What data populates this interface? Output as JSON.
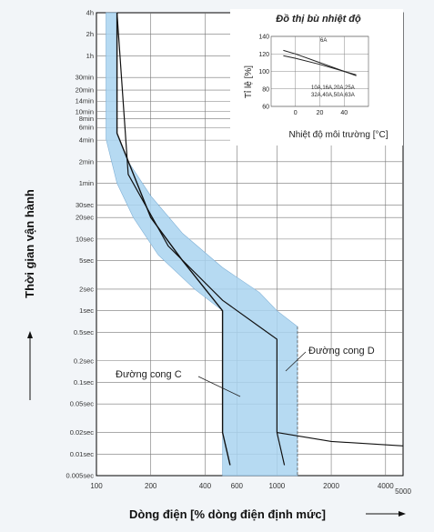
{
  "chart_data": [
    {
      "type": "line",
      "title": "",
      "xlabel": "Dòng điện [% dòng điện định mức]",
      "ylabel": "Thời gian vận hành",
      "x_scale": "log",
      "y_scale": "log",
      "xlim": [
        100,
        5000
      ],
      "ylim_seconds": [
        0.005,
        14400
      ],
      "x_ticks": [
        {
          "value": 100,
          "label": "100"
        },
        {
          "value": 200,
          "label": "200"
        },
        {
          "value": 400,
          "label": "400"
        },
        {
          "value": 600,
          "label": "600"
        },
        {
          "value": 1000,
          "label": "1000"
        },
        {
          "value": 2000,
          "label": "2000"
        },
        {
          "value": 4000,
          "label": "4000"
        },
        {
          "value": 5000,
          "label": "5000"
        }
      ],
      "y_ticks": [
        {
          "value": 14400,
          "label": "4h"
        },
        {
          "value": 7200,
          "label": "2h"
        },
        {
          "value": 3600,
          "label": "1h"
        },
        {
          "value": 1800,
          "label": "30min"
        },
        {
          "value": 1200,
          "label": "20min"
        },
        {
          "value": 840,
          "label": "14min"
        },
        {
          "value": 600,
          "label": "10min"
        },
        {
          "value": 480,
          "label": "8min"
        },
        {
          "value": 360,
          "label": "6min"
        },
        {
          "value": 240,
          "label": "4min"
        },
        {
          "value": 120,
          "label": "2min"
        },
        {
          "value": 60,
          "label": "1min"
        },
        {
          "value": 30,
          "label": "30sec"
        },
        {
          "value": 20,
          "label": "20sec"
        },
        {
          "value": 10,
          "label": "10sec"
        },
        {
          "value": 5,
          "label": "5sec"
        },
        {
          "value": 2,
          "label": "2sec"
        },
        {
          "value": 1,
          "label": "1sec"
        },
        {
          "value": 0.5,
          "label": "0.5sec"
        },
        {
          "value": 0.2,
          "label": "0.2sec"
        },
        {
          "value": 0.1,
          "label": "0.1sec"
        },
        {
          "value": 0.05,
          "label": "0.05sec"
        },
        {
          "value": 0.02,
          "label": "0.02sec"
        },
        {
          "value": 0.01,
          "label": "0.01sec"
        },
        {
          "value": 0.005,
          "label": "0.005sec"
        }
      ],
      "grid": true,
      "band": {
        "upper": [
          [
            130,
            14400
          ],
          [
            130,
            300
          ],
          [
            150,
            120
          ],
          [
            200,
            40
          ],
          [
            300,
            12
          ],
          [
            500,
            4
          ],
          [
            800,
            1.8
          ],
          [
            1000,
            1
          ],
          [
            1300,
            0.6
          ],
          [
            1300,
            0.005
          ]
        ],
        "lower": [
          [
            113,
            14400
          ],
          [
            113,
            250
          ],
          [
            130,
            60
          ],
          [
            160,
            20
          ],
          [
            220,
            6
          ],
          [
            350,
            2
          ],
          [
            500,
            1
          ],
          [
            500,
            0.005
          ]
        ],
        "color": "#a9d4f0"
      },
      "series": [
        {
          "name": "Đường cong C",
          "points": [
            [
              130,
              14400
            ],
            [
              130,
              300
            ],
            [
              200,
              20
            ],
            [
              300,
              5
            ],
            [
              500,
              1
            ],
            [
              500,
              0.02
            ],
            [
              550,
              0.007
            ]
          ]
        },
        {
          "name": "Đường cong D",
          "points": [
            [
              130,
              14400
            ],
            [
              150,
              80
            ],
            [
              250,
              8
            ],
            [
              500,
              1.4
            ],
            [
              800,
              0.6
            ],
            [
              1000,
              0.4
            ],
            [
              1000,
              0.02
            ],
            [
              1100,
              0.007
            ]
          ]
        },
        {
          "name": "",
          "points": [
            [
              1000,
              0.02
            ],
            [
              2000,
              0.015
            ],
            [
              5000,
              0.013
            ]
          ]
        }
      ],
      "annotations": [
        {
          "text": "Đường cong C",
          "points_to": [
            650,
            0.08
          ]
        },
        {
          "text": "Đường cong D",
          "points_to": [
            1030,
            0.15
          ]
        }
      ]
    },
    {
      "type": "line",
      "title": "Đồ thị bù nhiệt độ",
      "xlabel": "Nhiệt độ môi trường [°C]",
      "ylabel": "Tỉ lệ [%]",
      "xlim": [
        -20,
        60
      ],
      "ylim": [
        60,
        140
      ],
      "x_ticks": [
        0,
        20,
        40
      ],
      "y_ticks": [
        60,
        80,
        100,
        120,
        140
      ],
      "series": [
        {
          "name": "6A",
          "x": [
            -10,
            0,
            20,
            40,
            50
          ],
          "y": [
            124,
            120,
            110,
            100,
            95
          ]
        },
        {
          "name": "10A,16A,20A,25A,32A,40A,50A,63A",
          "x": [
            -10,
            0,
            20,
            40,
            50
          ],
          "y": [
            118,
            115,
            108,
            100,
            96
          ]
        }
      ],
      "annotations": [
        "6A",
        "10A,16A,20A,25A",
        "32A,40A,50A,63A"
      ]
    }
  ]
}
